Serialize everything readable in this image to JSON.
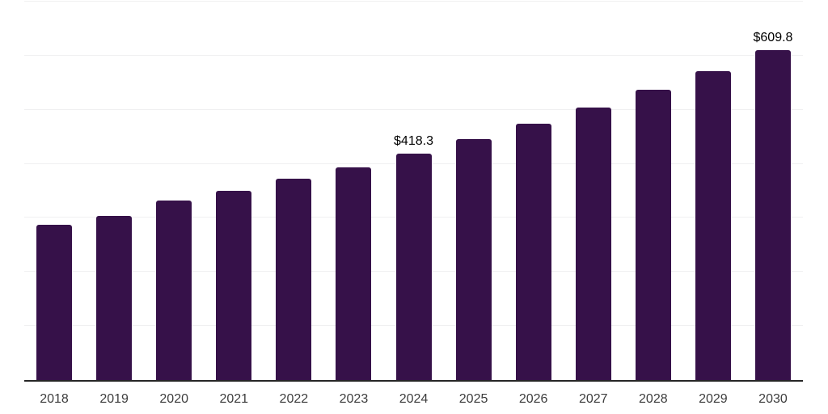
{
  "chart_data": {
    "type": "bar",
    "title": "",
    "xlabel": "",
    "ylabel": "",
    "categories": [
      "2018",
      "2019",
      "2020",
      "2021",
      "2022",
      "2023",
      "2024",
      "2025",
      "2026",
      "2027",
      "2028",
      "2029",
      "2030"
    ],
    "values": [
      287.3,
      304.4,
      331.9,
      350.3,
      373.1,
      394.1,
      418.3,
      446.4,
      474.8,
      504.6,
      536.9,
      571.8,
      609.8
    ],
    "data_labels": [
      "",
      "",
      "",
      "",
      "",
      "",
      "$418.3",
      "",
      "",
      "",
      "",
      "",
      "$609.8"
    ],
    "ylim": [
      0,
      700
    ],
    "gridline_step": 100,
    "grid": true,
    "legend": false,
    "y_axis_labels_visible": false,
    "bar_color": "#361149",
    "gridline_color": "#f0f0f1",
    "axis_line_color": "#262626",
    "tick_label_color": "#3d3d3d",
    "data_label_color": "#000000"
  }
}
